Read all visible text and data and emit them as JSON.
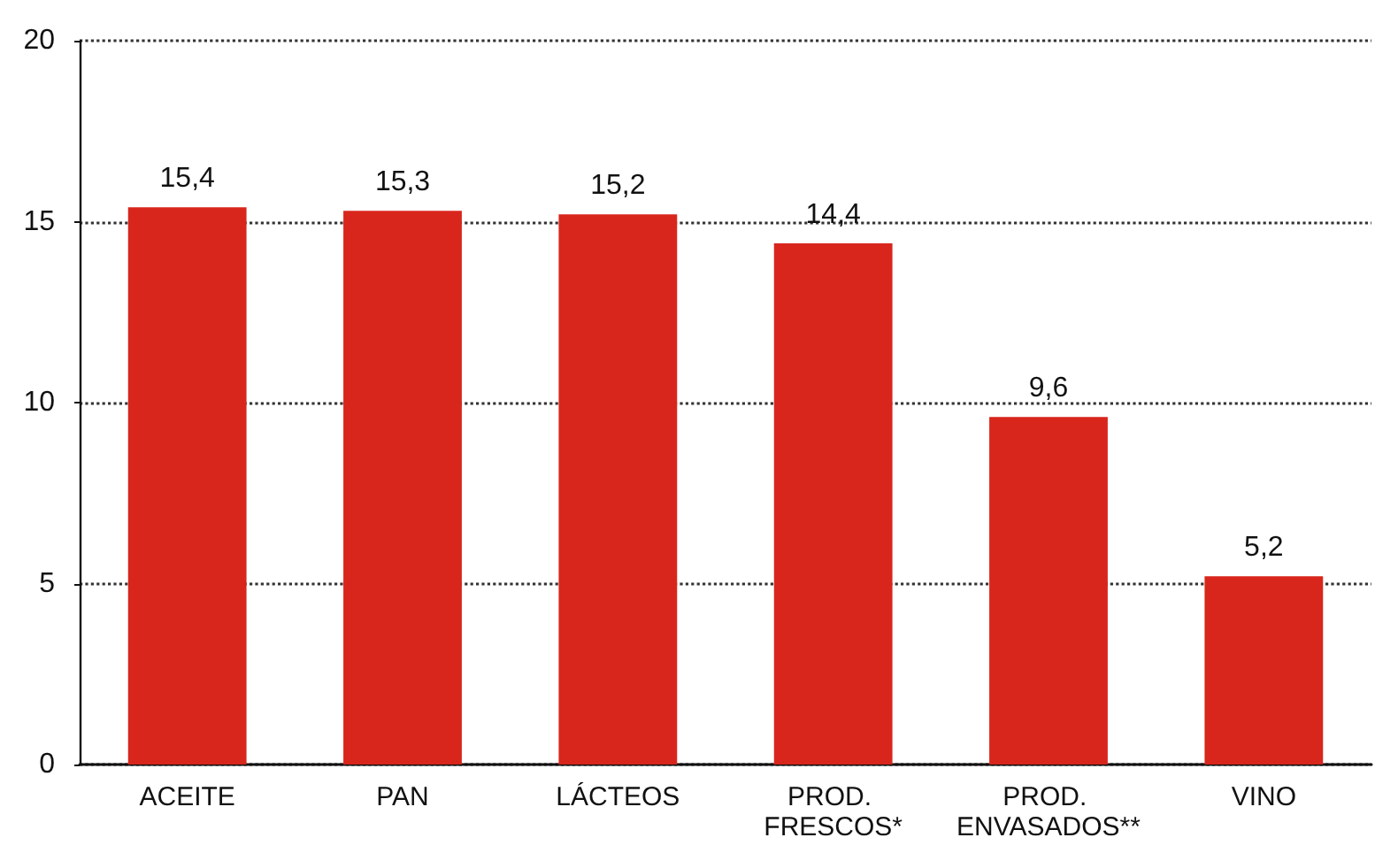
{
  "chart_data": {
    "type": "bar",
    "categories": [
      "ACEITE",
      "PAN",
      "LÁCTEOS",
      "PROD. FRESCOS*",
      "PROD. ENVASADOS**",
      "VINO"
    ],
    "values": [
      15.4,
      15.3,
      15.2,
      14.4,
      9.6,
      5.2
    ],
    "value_labels": [
      "15,4",
      "15,3",
      "15,2",
      "14,4",
      "9,6",
      "5,2"
    ],
    "color": "#d8261c",
    "ylim": [
      0,
      20
    ],
    "yticks": [
      0,
      5,
      10,
      15,
      20
    ],
    "grid": "y"
  }
}
